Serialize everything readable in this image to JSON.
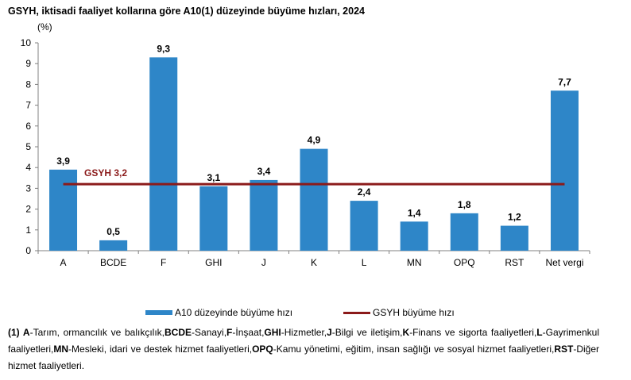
{
  "title": "GSYH, iktisadi faaliyet kollarına göre A10(1) düzeyinde büyüme hızları, 2024",
  "chart_data": {
    "type": "bar",
    "unit_label": "(%)",
    "categories": [
      "A",
      "BCDE",
      "F",
      "GHI",
      "J",
      "K",
      "L",
      "MN",
      "OPQ",
      "RST",
      "Net vergi"
    ],
    "series": [
      {
        "name": "A10 düzeyinde büyüme hızı",
        "values": [
          3.9,
          0.5,
          9.3,
          3.1,
          3.4,
          4.9,
          2.4,
          1.4,
          1.8,
          1.2,
          7.7
        ],
        "labels": [
          "3,9",
          "0,5",
          "9,3",
          "3,1",
          "3,4",
          "4,9",
          "2,4",
          "1,4",
          "1,8",
          "1,2",
          "7,7"
        ]
      }
    ],
    "reference_line": {
      "name": "GSYH büyüme hızı",
      "value": 3.2,
      "label": "GSYH 3,2"
    },
    "ylim": [
      0,
      10
    ],
    "yticks": [
      0,
      1,
      2,
      3,
      4,
      5,
      6,
      7,
      8,
      9,
      10
    ],
    "grid": false,
    "legend_position": "bottom",
    "colors": {
      "bar": "#2e86c8",
      "line": "#8b1a1a"
    }
  },
  "footnote": [
    {
      "bold": "(1) A",
      "text": "-Tarım, ormancılık ve balıkçılık,"
    },
    {
      "bold": "BCDE",
      "text": "-Sanayi,"
    },
    {
      "bold": "F",
      "text": "-İnşaat,"
    },
    {
      "bold": "GHI",
      "text": "-Hizmetler,"
    },
    {
      "bold": "J",
      "text": "-Bilgi ve iletişim,"
    },
    {
      "bold": "K",
      "text": "-Finans ve sigorta faaliyetleri,"
    },
    {
      "bold": "L",
      "text": "-Gayrimenkul faaliyetleri,"
    },
    {
      "bold": "MN",
      "text": "-Mesleki, idari ve destek hizmet faaliyetleri,"
    },
    {
      "bold": "OPQ",
      "text": "-Kamu yönetimi, eğitim, insan sağlığı ve sosyal hizmet faaliyetleri,"
    },
    {
      "bold": "RST",
      "text": "-Diğer hizmet faaliyetleri."
    }
  ]
}
